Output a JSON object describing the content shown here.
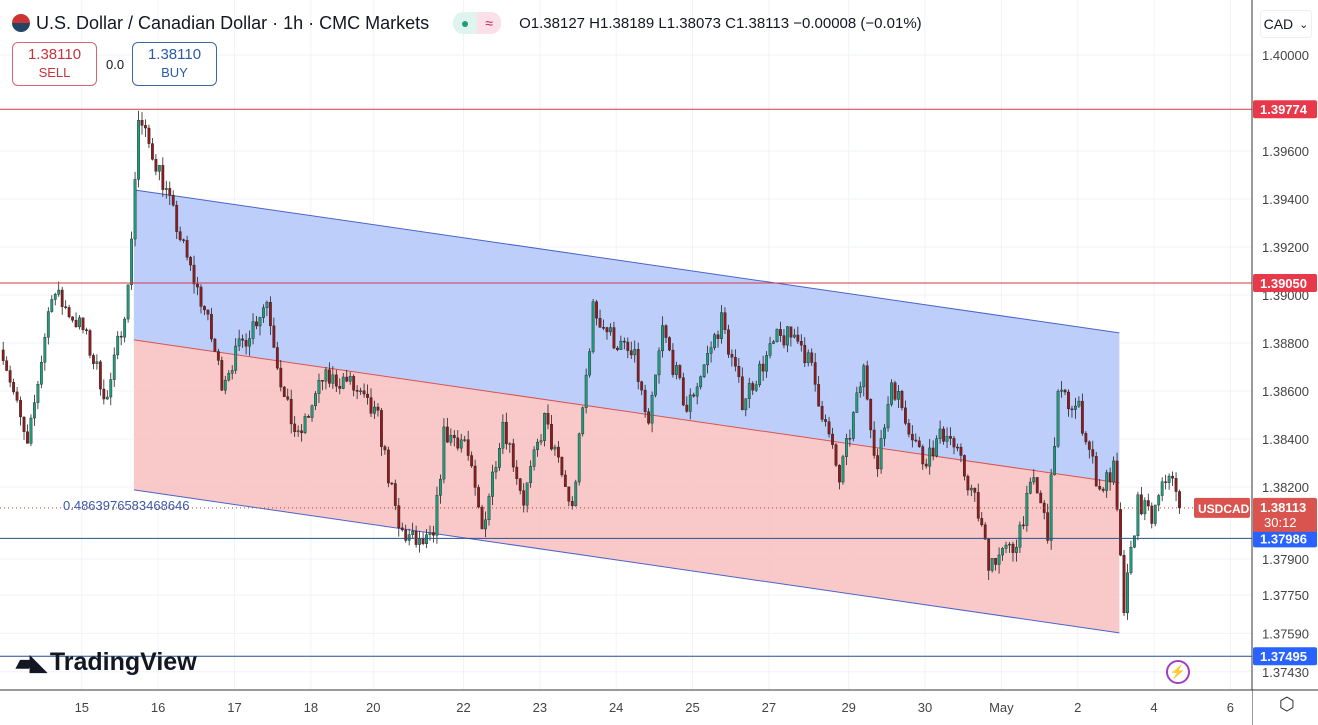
{
  "header": {
    "title": "U.S. Dollar / Canadian Dollar · 1h · CMC Markets",
    "ohlc": "O1.38127 H1.38189 L1.38073 C1.38113 −0.00008 (−0.01%)",
    "status_dot": "●",
    "status_wave": "≈"
  },
  "trade": {
    "sell_price": "1.38110",
    "sell_label": "SELL",
    "spread": "0.0",
    "buy_price": "1.38110",
    "buy_label": "BUY"
  },
  "currency": {
    "label": "CAD",
    "chevron": "⌄"
  },
  "logo": "TradingView",
  "fib_label": "0.4863976583468646",
  "colors": {
    "up": "#1f9c7c",
    "down": "#8e1c1c",
    "red_line": "#d33a48",
    "blue_line": "#2a4f8a",
    "channel_upper": "#b7c9fb",
    "channel_lower": "#f8c3c3"
  },
  "chart_data": {
    "type": "candlestick",
    "symbol": "USDCAD",
    "timeframe": "1h",
    "ylim": [
      1.3732,
      1.4022
    ],
    "y_ticks": [
      "1.40000",
      "1.39600",
      "1.39400",
      "1.39200",
      "1.39000",
      "1.38800",
      "1.38600",
      "1.38400",
      "1.38200",
      "1.37900",
      "1.37750",
      "1.37590",
      "1.37430"
    ],
    "x_ticks": [
      {
        "label": "15",
        "h": 23
      },
      {
        "label": "16",
        "h": 45
      },
      {
        "label": "17",
        "h": 67
      },
      {
        "label": "18",
        "h": 89
      },
      {
        "label": "20",
        "h": 107
      },
      {
        "label": "22",
        "h": 133
      },
      {
        "label": "23",
        "h": 155
      },
      {
        "label": "24",
        "h": 177
      },
      {
        "label": "25",
        "h": 199
      },
      {
        "label": "27",
        "h": 221
      },
      {
        "label": "29",
        "h": 244
      },
      {
        "label": "30",
        "h": 266
      },
      {
        "label": "May",
        "h": 288
      },
      {
        "label": "2",
        "h": 310
      },
      {
        "label": "4",
        "h": 332
      },
      {
        "label": "6",
        "h": 354
      }
    ],
    "close_path": [
      [
        0,
        1.38771
      ],
      [
        7,
        1.38354
      ],
      [
        14,
        1.39021
      ],
      [
        23,
        1.38854
      ],
      [
        30,
        1.38563
      ],
      [
        36,
        1.39021
      ],
      [
        39,
        1.39729
      ],
      [
        45,
        1.39521
      ],
      [
        53,
        1.39146
      ],
      [
        58,
        1.38938
      ],
      [
        63,
        1.38646
      ],
      [
        71,
        1.38854
      ],
      [
        76,
        1.38979
      ],
      [
        81,
        1.38563
      ],
      [
        85,
        1.38396
      ],
      [
        92,
        1.38646
      ],
      [
        99,
        1.38646
      ],
      [
        108,
        1.38479
      ],
      [
        114,
        1.38021
      ],
      [
        120,
        1.37958
      ],
      [
        124,
        1.37979
      ],
      [
        127,
        1.38417
      ],
      [
        133,
        1.38396
      ],
      [
        138,
        1.38021
      ],
      [
        144,
        1.38479
      ],
      [
        150,
        1.38146
      ],
      [
        156,
        1.38479
      ],
      [
        164,
        1.38104
      ],
      [
        170,
        1.38938
      ],
      [
        176,
        1.38813
      ],
      [
        182,
        1.38729
      ],
      [
        186,
        1.38438
      ],
      [
        190,
        1.38854
      ],
      [
        197,
        1.38521
      ],
      [
        207,
        1.38896
      ],
      [
        213,
        1.38563
      ],
      [
        223,
        1.38813
      ],
      [
        229,
        1.38833
      ],
      [
        233,
        1.38688
      ],
      [
        241,
        1.38229
      ],
      [
        248,
        1.38688
      ],
      [
        252,
        1.38271
      ],
      [
        256,
        1.38646
      ],
      [
        265,
        1.38313
      ],
      [
        272,
        1.38438
      ],
      [
        280,
        1.38146
      ],
      [
        284,
        1.37896
      ],
      [
        291,
        1.37938
      ],
      [
        297,
        1.38229
      ],
      [
        301,
        1.38021
      ],
      [
        304,
        1.38583
      ],
      [
        310,
        1.38521
      ],
      [
        316,
        1.38188
      ],
      [
        320,
        1.38271
      ],
      [
        323,
        1.37688
      ],
      [
        327,
        1.38146
      ],
      [
        331,
        1.38063
      ],
      [
        336,
        1.38271
      ],
      [
        339,
        1.38113
      ]
    ],
    "regression_channel": {
      "start_h": 38,
      "end_h": 322,
      "upper": [
        1.39438,
        1.38842
      ],
      "middle": [
        1.38813,
        1.38217
      ],
      "lower": [
        1.38188,
        1.37592
      ]
    },
    "horizontal_lines": [
      {
        "price": 1.39774,
        "label": "1.39774",
        "color": "red"
      },
      {
        "price": 1.3905,
        "label": "1.39050",
        "color": "red"
      },
      {
        "price": 1.37986,
        "label": "1.37986",
        "color": "blue"
      },
      {
        "price": 1.37495,
        "label": "1.37495",
        "color": "blue"
      }
    ],
    "last_price": {
      "price": 1.38113,
      "label": "1.38113",
      "countdown": "30:12",
      "symbol_label": "USDCAD"
    }
  }
}
